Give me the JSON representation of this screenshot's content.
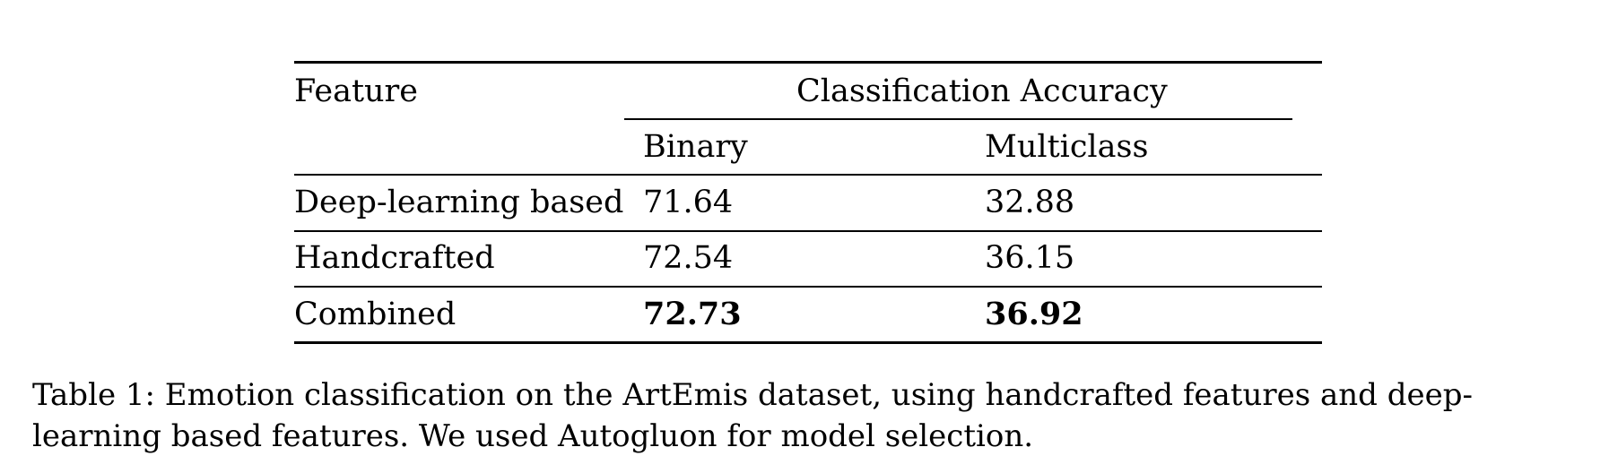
{
  "table": {
    "header": {
      "feature": "Feature",
      "group": "Classification Accuracy",
      "binary": "Binary",
      "multiclass": "Multiclass"
    },
    "rows": [
      {
        "feature": "Deep-learning based",
        "binary": "71.64",
        "multiclass": "32.88",
        "bold": false
      },
      {
        "feature": "Handcrafted",
        "binary": "72.54",
        "multiclass": "36.15",
        "bold": false
      },
      {
        "feature": "Combined",
        "binary": "72.73",
        "multiclass": "36.92",
        "bold": true
      }
    ]
  },
  "caption": "Table 1: Emotion classification on the ArtEmis dataset, using handcrafted features and deep-learning based features. We used Autogluon for model selection."
}
